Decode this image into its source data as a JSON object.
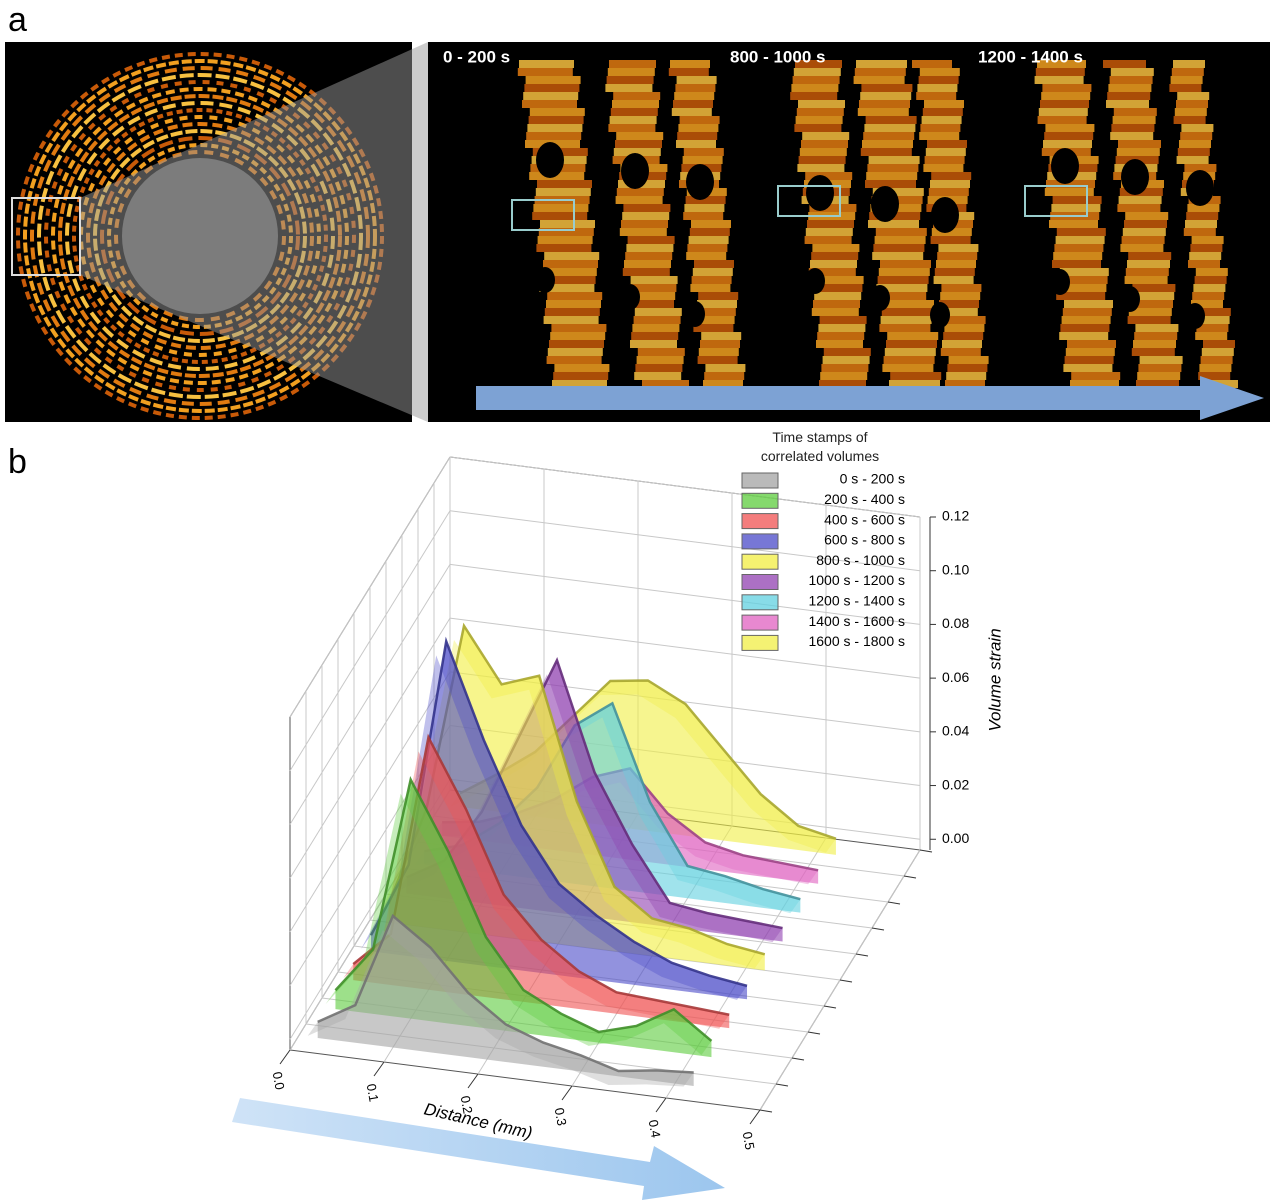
{
  "panel_a": {
    "label": "a",
    "frames": [
      "0 - 200 s",
      "800 - 1000 s",
      "1200 - 1400 s"
    ]
  },
  "panel_b": {
    "label": "b"
  },
  "chart_data": {
    "type": "waterfall3d",
    "x_label": "Distance (mm)",
    "y_label": "Volume strain",
    "legend_title": "Time stamps of correlated volumes",
    "xlim": [
      0,
      0.5
    ],
    "xticks": [
      {
        "value": 0,
        "label": "0.0"
      },
      0.1,
      0.2,
      0.3,
      0.4,
      0.5
    ],
    "ylim": [
      -0.004,
      0.12
    ],
    "yticks": [
      {
        "value": 0,
        "label": "0.00"
      },
      0.02,
      0.04,
      0.06,
      0.08,
      {
        "value": 0.1,
        "label": "0.10"
      },
      0.12
    ],
    "grid": true,
    "x": [
      0.02,
      0.06,
      0.1,
      0.14,
      0.18,
      0.22,
      0.26,
      0.3,
      0.34,
      0.38,
      0.42
    ],
    "series": [
      {
        "name": "0 s - 200 s",
        "color": "#a3a3a3",
        "values": [
          0.002,
          0.01,
          0.045,
          0.035,
          0.02,
          0.01,
          0.005,
          0.002,
          -0.002,
          0.0,
          0.001
        ]
      },
      {
        "name": "200 s - 400 s",
        "color": "#5ccc3c",
        "values": [
          0.003,
          0.02,
          0.085,
          0.06,
          0.03,
          0.012,
          0.005,
          0.0,
          0.004,
          0.012,
          0.002
        ]
      },
      {
        "name": "400 s - 600 s",
        "color": "#f05252",
        "values": [
          0.002,
          0.015,
          0.09,
          0.065,
          0.035,
          0.02,
          0.01,
          0.004,
          0.003,
          0.002,
          0.001
        ]
      },
      {
        "name": "600 s - 800 s",
        "color": "#4a4ac8",
        "values": [
          0.002,
          0.03,
          0.115,
          0.08,
          0.05,
          0.03,
          0.02,
          0.012,
          0.006,
          0.003,
          0.001
        ]
      },
      {
        "name": "800 s - 1000 s",
        "color": "#f2ee40",
        "values": [
          0.003,
          0.04,
          0.11,
          0.09,
          0.095,
          0.05,
          0.02,
          0.01,
          0.008,
          0.004,
          0.002
        ]
      },
      {
        "name": "1000 s - 1200 s",
        "color": "#9040b0",
        "values": [
          0.002,
          0.01,
          0.03,
          0.06,
          0.09,
          0.05,
          0.025,
          0.005,
          0.003,
          0.002,
          0.001
        ]
      },
      {
        "name": "1200 s - 1400 s",
        "color": "#60d0e0",
        "values": [
          0.001,
          0.005,
          0.015,
          0.03,
          0.055,
          0.065,
          0.03,
          0.008,
          0.006,
          0.003,
          0.001
        ]
      },
      {
        "name": "1400 s - 1600 s",
        "color": "#e060c0",
        "values": [
          0.001,
          0.003,
          0.008,
          0.015,
          0.025,
          0.03,
          0.015,
          0.006,
          0.003,
          0.002,
          0.001
        ]
      },
      {
        "name": "1600 s - 1800 s",
        "color": "#f0ee44",
        "values": [
          0.001,
          0.01,
          0.02,
          0.035,
          0.05,
          0.052,
          0.045,
          0.03,
          0.015,
          0.005,
          0.002
        ]
      }
    ]
  }
}
